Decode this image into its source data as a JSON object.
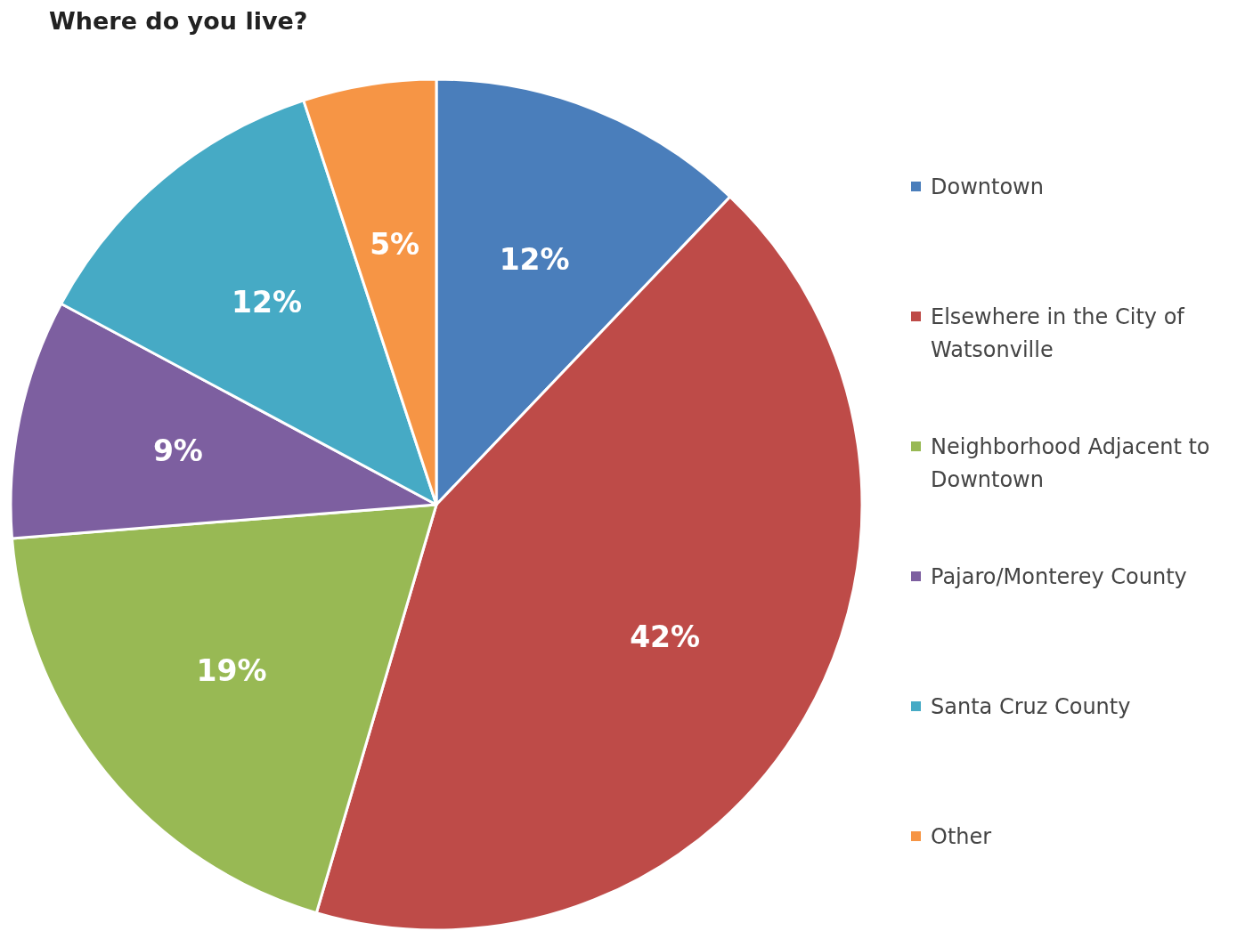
{
  "chart_data": {
    "type": "pie",
    "title": "Where do you live?",
    "categories": [
      "Downtown",
      "Elsewhere in the City of Watsonville",
      "Neighborhood Adjacent to Downtown",
      "Pajaro/Monterey County",
      "Santa Cruz County",
      "Other"
    ],
    "values": [
      12,
      42,
      19,
      9,
      12,
      5
    ],
    "value_labels": [
      "12%",
      "42%",
      "19%",
      "9%",
      "12%",
      "5%"
    ],
    "colors": [
      "#4a7ebb",
      "#be4b48",
      "#98b954",
      "#7d5fa0",
      "#46aac5",
      "#f69545"
    ],
    "legend": "right"
  }
}
